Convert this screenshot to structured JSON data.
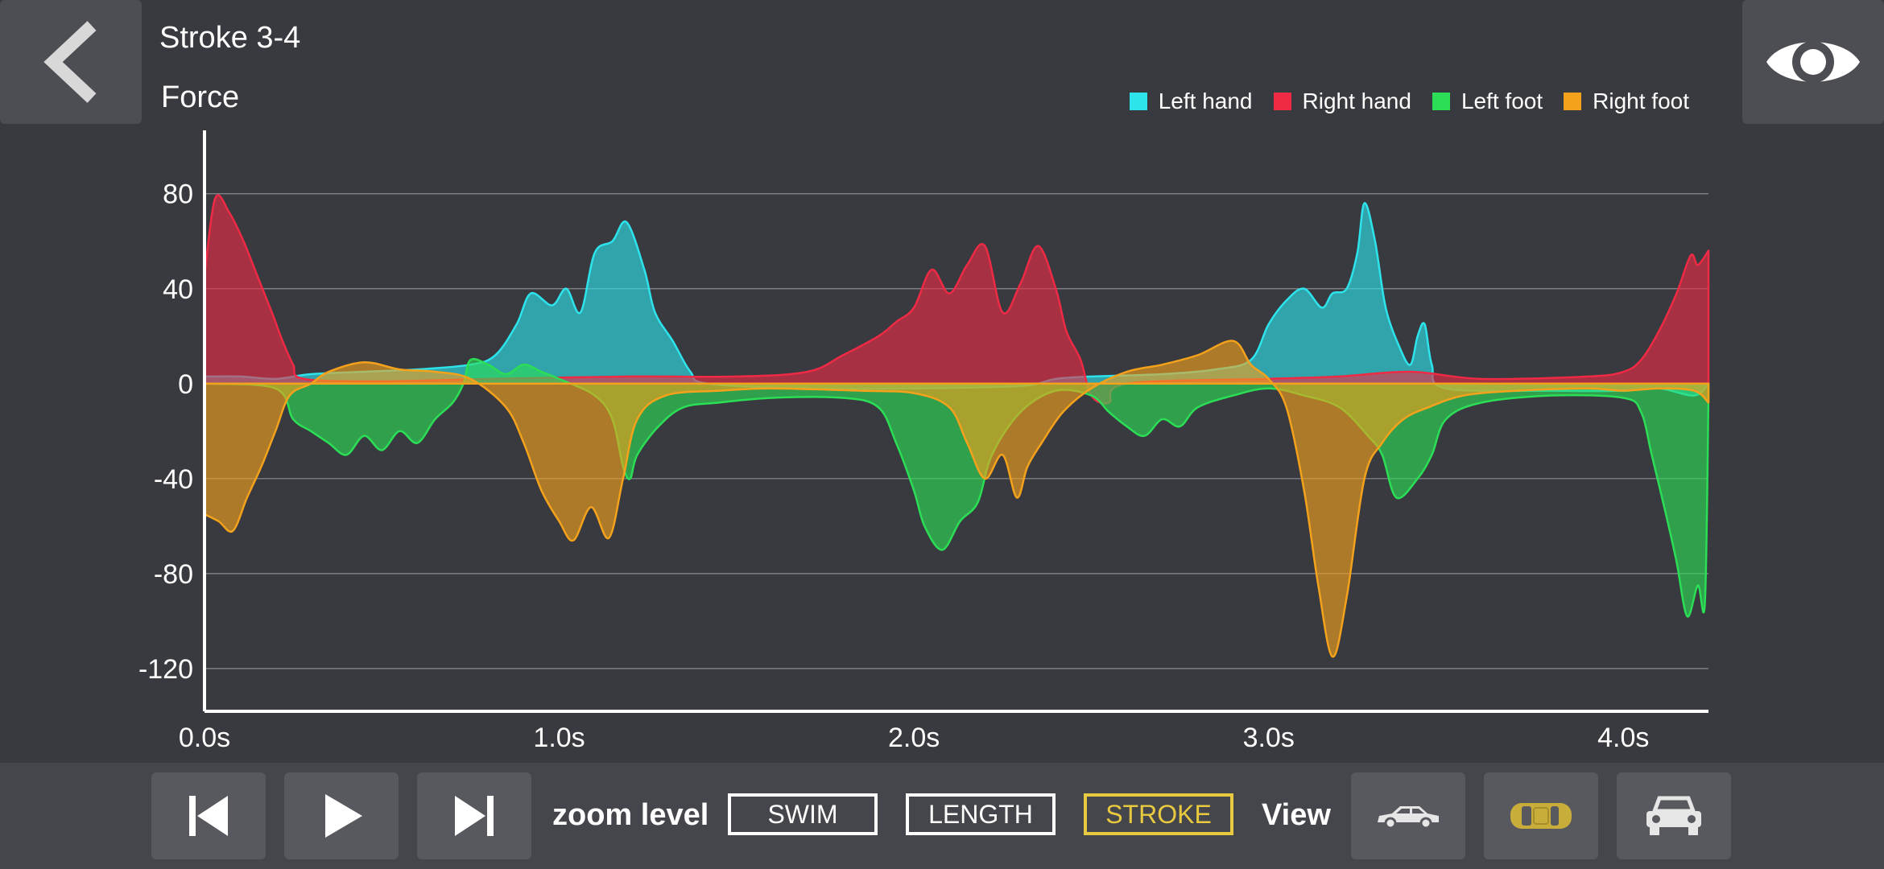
{
  "header": {
    "title": "Stroke 3-4",
    "chart_title": "Force"
  },
  "legend": [
    {
      "label": "Left hand",
      "color": "#2de3ec"
    },
    {
      "label": "Right hand",
      "color": "#ee2a45"
    },
    {
      "label": "Left foot",
      "color": "#2bde55"
    },
    {
      "label": "Right foot",
      "color": "#f4a21c"
    }
  ],
  "chart_data": {
    "type": "area",
    "title": "Force",
    "xlabel": "",
    "ylabel": "",
    "xlim": [
      0,
      4.24
    ],
    "ylim": [
      -138,
      106
    ],
    "y_ticks": [
      "80",
      "40",
      "0",
      "-40",
      "-80",
      "-120"
    ],
    "y_tick_values": [
      80,
      40,
      0,
      -40,
      -80,
      -120
    ],
    "x_ticks": [
      "0.0s",
      "1.0s",
      "2.0s",
      "3.0s",
      "4.0s"
    ],
    "x_tick_values": [
      0,
      1,
      2,
      3,
      4
    ],
    "grid": true,
    "series": [
      {
        "name": "Left hand",
        "color": "#2de3ec",
        "points": [
          [
            0,
            3
          ],
          [
            0.1,
            3
          ],
          [
            0.2,
            2
          ],
          [
            0.3,
            4
          ],
          [
            0.45,
            5
          ],
          [
            0.6,
            6
          ],
          [
            0.75,
            8
          ],
          [
            0.82,
            12
          ],
          [
            0.88,
            25
          ],
          [
            0.92,
            38
          ],
          [
            0.98,
            33
          ],
          [
            1.02,
            40
          ],
          [
            1.06,
            30
          ],
          [
            1.1,
            55
          ],
          [
            1.15,
            60
          ],
          [
            1.19,
            68
          ],
          [
            1.24,
            48
          ],
          [
            1.27,
            30
          ],
          [
            1.32,
            18
          ],
          [
            1.37,
            5
          ],
          [
            1.42,
            0
          ],
          [
            1.7,
            -2
          ],
          [
            2.0,
            -2
          ],
          [
            2.3,
            -1
          ],
          [
            2.4,
            2
          ],
          [
            2.5,
            3
          ],
          [
            2.7,
            4
          ],
          [
            2.85,
            6
          ],
          [
            2.95,
            10
          ],
          [
            3.0,
            25
          ],
          [
            3.05,
            35
          ],
          [
            3.1,
            40
          ],
          [
            3.15,
            32
          ],
          [
            3.18,
            38
          ],
          [
            3.22,
            40
          ],
          [
            3.25,
            55
          ],
          [
            3.27,
            76
          ],
          [
            3.3,
            60
          ],
          [
            3.33,
            32
          ],
          [
            3.37,
            15
          ],
          [
            3.4,
            8
          ],
          [
            3.42,
            20
          ],
          [
            3.44,
            25
          ],
          [
            3.46,
            8
          ],
          [
            3.5,
            -2
          ],
          [
            3.8,
            -3
          ],
          [
            4.0,
            -3
          ],
          [
            4.1,
            -2
          ],
          [
            4.2,
            -5
          ],
          [
            4.24,
            0
          ]
        ]
      },
      {
        "name": "Right hand",
        "color": "#ee2a45",
        "points": [
          [
            0,
            45
          ],
          [
            0.03,
            78
          ],
          [
            0.07,
            72
          ],
          [
            0.11,
            60
          ],
          [
            0.15,
            45
          ],
          [
            0.19,
            30
          ],
          [
            0.22,
            18
          ],
          [
            0.25,
            8
          ],
          [
            0.28,
            2
          ],
          [
            0.5,
            1
          ],
          [
            0.8,
            2
          ],
          [
            1.2,
            3
          ],
          [
            1.5,
            3
          ],
          [
            1.7,
            5
          ],
          [
            1.8,
            12
          ],
          [
            1.9,
            20
          ],
          [
            1.95,
            26
          ],
          [
            2.0,
            32
          ],
          [
            2.05,
            48
          ],
          [
            2.1,
            38
          ],
          [
            2.15,
            50
          ],
          [
            2.2,
            58
          ],
          [
            2.25,
            30
          ],
          [
            2.3,
            42
          ],
          [
            2.35,
            58
          ],
          [
            2.4,
            40
          ],
          [
            2.43,
            22
          ],
          [
            2.47,
            10
          ],
          [
            2.5,
            -5
          ],
          [
            2.55,
            -8
          ],
          [
            2.6,
            0
          ],
          [
            3.0,
            2
          ],
          [
            3.2,
            3
          ],
          [
            3.4,
            5
          ],
          [
            3.6,
            2
          ],
          [
            3.9,
            3
          ],
          [
            4.0,
            5
          ],
          [
            4.05,
            10
          ],
          [
            4.1,
            22
          ],
          [
            4.15,
            38
          ],
          [
            4.19,
            54
          ],
          [
            4.21,
            50
          ],
          [
            4.24,
            56
          ]
        ]
      },
      {
        "name": "Left foot",
        "color": "#2bde55",
        "points": [
          [
            0,
            0
          ],
          [
            0.2,
            -2
          ],
          [
            0.25,
            -15
          ],
          [
            0.3,
            -20
          ],
          [
            0.35,
            -25
          ],
          [
            0.4,
            -30
          ],
          [
            0.45,
            -22
          ],
          [
            0.5,
            -28
          ],
          [
            0.55,
            -20
          ],
          [
            0.6,
            -25
          ],
          [
            0.65,
            -15
          ],
          [
            0.7,
            -8
          ],
          [
            0.73,
            0
          ],
          [
            0.75,
            10
          ],
          [
            0.8,
            8
          ],
          [
            0.85,
            4
          ],
          [
            0.9,
            8
          ],
          [
            0.95,
            5
          ],
          [
            1.0,
            2
          ],
          [
            1.1,
            -5
          ],
          [
            1.15,
            -15
          ],
          [
            1.18,
            -35
          ],
          [
            1.2,
            -40
          ],
          [
            1.22,
            -30
          ],
          [
            1.28,
            -18
          ],
          [
            1.35,
            -10
          ],
          [
            1.45,
            -8
          ],
          [
            1.6,
            -6
          ],
          [
            1.8,
            -6
          ],
          [
            1.9,
            -10
          ],
          [
            1.95,
            -25
          ],
          [
            2.0,
            -45
          ],
          [
            2.03,
            -60
          ],
          [
            2.08,
            -70
          ],
          [
            2.13,
            -58
          ],
          [
            2.18,
            -50
          ],
          [
            2.22,
            -30
          ],
          [
            2.3,
            -12
          ],
          [
            2.4,
            -3
          ],
          [
            2.5,
            -5
          ],
          [
            2.55,
            -12
          ],
          [
            2.6,
            -18
          ],
          [
            2.65,
            -22
          ],
          [
            2.7,
            -15
          ],
          [
            2.75,
            -18
          ],
          [
            2.8,
            -10
          ],
          [
            2.9,
            -5
          ],
          [
            3.0,
            -2
          ],
          [
            3.1,
            -5
          ],
          [
            3.2,
            -10
          ],
          [
            3.28,
            -22
          ],
          [
            3.32,
            -30
          ],
          [
            3.36,
            -48
          ],
          [
            3.42,
            -40
          ],
          [
            3.46,
            -30
          ],
          [
            3.5,
            -15
          ],
          [
            3.6,
            -8
          ],
          [
            3.8,
            -5
          ],
          [
            4.0,
            -6
          ],
          [
            4.05,
            -12
          ],
          [
            4.08,
            -30
          ],
          [
            4.12,
            -55
          ],
          [
            4.15,
            -75
          ],
          [
            4.18,
            -98
          ],
          [
            4.21,
            -85
          ],
          [
            4.23,
            -92
          ],
          [
            4.24,
            -5
          ]
        ]
      },
      {
        "name": "Right foot",
        "color": "#f4a21c",
        "points": [
          [
            0,
            -55
          ],
          [
            0.04,
            -58
          ],
          [
            0.08,
            -62
          ],
          [
            0.12,
            -48
          ],
          [
            0.16,
            -35
          ],
          [
            0.2,
            -20
          ],
          [
            0.24,
            -5
          ],
          [
            0.3,
            0
          ],
          [
            0.35,
            5
          ],
          [
            0.45,
            9
          ],
          [
            0.55,
            6
          ],
          [
            0.65,
            5
          ],
          [
            0.75,
            2
          ],
          [
            0.85,
            -10
          ],
          [
            0.9,
            -25
          ],
          [
            0.95,
            -45
          ],
          [
            1.0,
            -58
          ],
          [
            1.04,
            -66
          ],
          [
            1.09,
            -52
          ],
          [
            1.14,
            -65
          ],
          [
            1.18,
            -40
          ],
          [
            1.22,
            -15
          ],
          [
            1.3,
            -5
          ],
          [
            1.45,
            -3
          ],
          [
            1.6,
            -2
          ],
          [
            1.85,
            -3
          ],
          [
            2.0,
            -4
          ],
          [
            2.1,
            -10
          ],
          [
            2.15,
            -25
          ],
          [
            2.2,
            -40
          ],
          [
            2.25,
            -30
          ],
          [
            2.29,
            -48
          ],
          [
            2.32,
            -35
          ],
          [
            2.36,
            -25
          ],
          [
            2.42,
            -12
          ],
          [
            2.5,
            -2
          ],
          [
            2.6,
            5
          ],
          [
            2.7,
            8
          ],
          [
            2.8,
            12
          ],
          [
            2.9,
            18
          ],
          [
            2.95,
            8
          ],
          [
            3.0,
            2
          ],
          [
            3.05,
            -10
          ],
          [
            3.1,
            -45
          ],
          [
            3.14,
            -85
          ],
          [
            3.18,
            -115
          ],
          [
            3.22,
            -90
          ],
          [
            3.27,
            -40
          ],
          [
            3.32,
            -25
          ],
          [
            3.38,
            -15
          ],
          [
            3.45,
            -10
          ],
          [
            3.55,
            -5
          ],
          [
            3.7,
            -3
          ],
          [
            3.9,
            -2
          ],
          [
            4.0,
            -3
          ],
          [
            4.1,
            -2
          ],
          [
            4.2,
            -3
          ],
          [
            4.24,
            -8
          ]
        ]
      }
    ]
  },
  "controls": {
    "skip_back_label": "Previous",
    "play_label": "Play",
    "skip_forward_label": "Next",
    "zoom_label": "zoom level",
    "zoom_options": [
      "SWIM",
      "LENGTH",
      "STROKE"
    ],
    "zoom_selected": "STROKE",
    "view_label": "View"
  }
}
